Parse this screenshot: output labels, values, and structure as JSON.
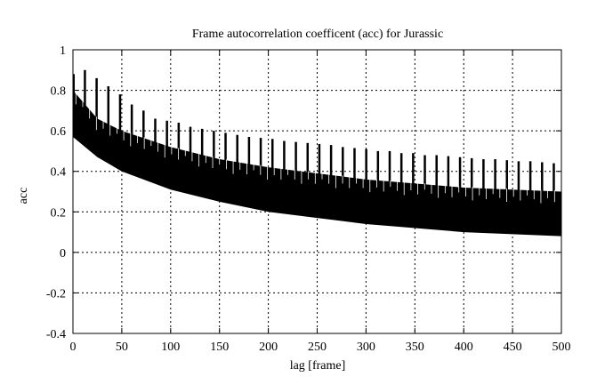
{
  "chart_data": {
    "type": "line",
    "title": "Frame autocorrelation coefficent (acc) for Jurassic",
    "xlabel": "lag [frame]",
    "ylabel": "acc",
    "xlim": [
      0,
      500
    ],
    "ylim": [
      -0.4,
      1
    ],
    "xticks": [
      0,
      50,
      100,
      150,
      200,
      250,
      300,
      350,
      400,
      450,
      500
    ],
    "yticks": [
      -0.4,
      -0.2,
      0,
      0.2,
      0.4,
      0.6,
      0.8,
      1
    ],
    "ytick_labels": [
      "-0.4",
      "-0.2",
      "0",
      "0.2",
      "0.4",
      "0.6",
      "0.8",
      "1"
    ],
    "grid": true,
    "color": "#000000",
    "envelope_lags": [
      0,
      25,
      50,
      100,
      150,
      200,
      250,
      300,
      350,
      400,
      450,
      500
    ],
    "lower_envelope": [
      0.57,
      0.47,
      0.4,
      0.31,
      0.25,
      0.2,
      0.17,
      0.14,
      0.12,
      0.1,
      0.09,
      0.08
    ],
    "upper_envelope": [
      0.8,
      0.66,
      0.6,
      0.52,
      0.46,
      0.42,
      0.39,
      0.36,
      0.34,
      0.32,
      0.31,
      0.3
    ],
    "peak_lags": [
      12,
      24,
      36,
      48,
      60,
      72,
      84,
      96,
      108,
      120,
      132,
      144,
      156,
      168,
      180,
      192,
      204,
      216,
      228,
      240,
      252,
      264,
      276,
      288,
      300,
      312,
      324,
      336,
      348,
      360,
      372,
      384,
      396,
      408,
      420,
      432,
      444,
      456,
      468,
      480,
      492
    ],
    "peak_values": [
      0.9,
      0.86,
      0.82,
      0.78,
      0.73,
      0.7,
      0.66,
      0.65,
      0.64,
      0.62,
      0.61,
      0.6,
      0.59,
      0.58,
      0.57,
      0.565,
      0.56,
      0.55,
      0.545,
      0.54,
      0.535,
      0.53,
      0.52,
      0.515,
      0.51,
      0.5,
      0.5,
      0.49,
      0.49,
      0.48,
      0.48,
      0.475,
      0.47,
      0.465,
      0.46,
      0.46,
      0.455,
      0.45,
      0.45,
      0.445,
      0.44
    ]
  }
}
